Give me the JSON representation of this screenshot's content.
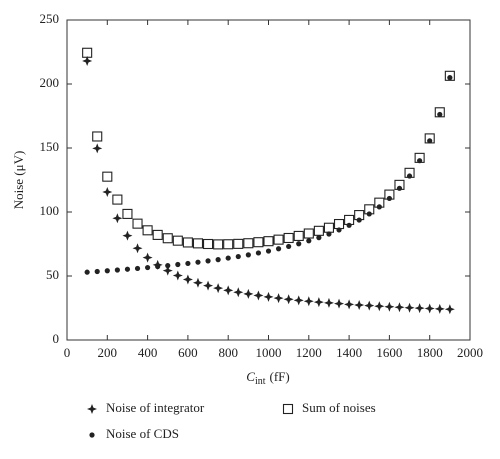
{
  "chart_data": {
    "type": "scatter",
    "x_label": [
      "C",
      "int",
      "(fF)"
    ],
    "y_label": "Noise (μV)",
    "xlim": [
      0,
      2000
    ],
    "xticks": [
      0,
      200,
      400,
      600,
      800,
      1000,
      1200,
      1400,
      1600,
      1800,
      2000
    ],
    "ylim": [
      0,
      250
    ],
    "yticks": [
      0,
      50,
      100,
      150,
      200,
      250
    ],
    "x": [
      100,
      150,
      200,
      250,
      300,
      350,
      400,
      450,
      500,
      550,
      600,
      650,
      700,
      750,
      800,
      850,
      900,
      950,
      1000,
      1050,
      1100,
      1150,
      1200,
      1250,
      1300,
      1350,
      1400,
      1450,
      1500,
      1550,
      1600,
      1650,
      1700,
      1750,
      1800,
      1850,
      1900
    ],
    "legend": "bottom",
    "series": [
      {
        "name": "Noise of integrator",
        "color": "#222",
        "marker": "star",
        "values": [
          218,
          149.7,
          115.6,
          95.1,
          81.5,
          71.7,
          64.4,
          58.7,
          54.2,
          50.4,
          47.3,
          44.7,
          42.5,
          40.5,
          38.8,
          37.3,
          36.0,
          34.8,
          33.7,
          32.7,
          31.8,
          31.0,
          30.3,
          29.6,
          29.0,
          28.4,
          27.8,
          27.3,
          26.9,
          26.4,
          26.0,
          25.6,
          25.2,
          24.9,
          24.6,
          24.3,
          24.0
        ]
      },
      {
        "name": "Noise of CDS",
        "color": "#222",
        "marker": "dot",
        "values": [
          53.0,
          53.5,
          54.1,
          54.7,
          55.3,
          55.9,
          56.6,
          57.4,
          58.1,
          59.0,
          59.8,
          60.8,
          61.8,
          62.8,
          64.0,
          65.2,
          66.5,
          68.0,
          69.5,
          71.3,
          73.1,
          75.2,
          77.5,
          80.0,
          82.8,
          86.0,
          89.6,
          93.7,
          98.5,
          104.0,
          110.6,
          118.5,
          128.1,
          140.1,
          155.6,
          176.2,
          205.0
        ]
      },
      {
        "name": "Sum of noises",
        "color": "#222",
        "marker": "square",
        "values": [
          224.4,
          159.0,
          127.6,
          109.7,
          98.5,
          90.9,
          85.7,
          82.1,
          79.5,
          77.6,
          76.2,
          75.5,
          75.0,
          74.7,
          74.8,
          75.1,
          75.6,
          76.4,
          77.2,
          78.4,
          79.7,
          81.3,
          83.2,
          85.3,
          87.7,
          90.6,
          93.8,
          97.6,
          102.1,
          107.3,
          113.6,
          121.2,
          130.6,
          142.3,
          157.5,
          177.9,
          206.4
        ]
      }
    ]
  }
}
